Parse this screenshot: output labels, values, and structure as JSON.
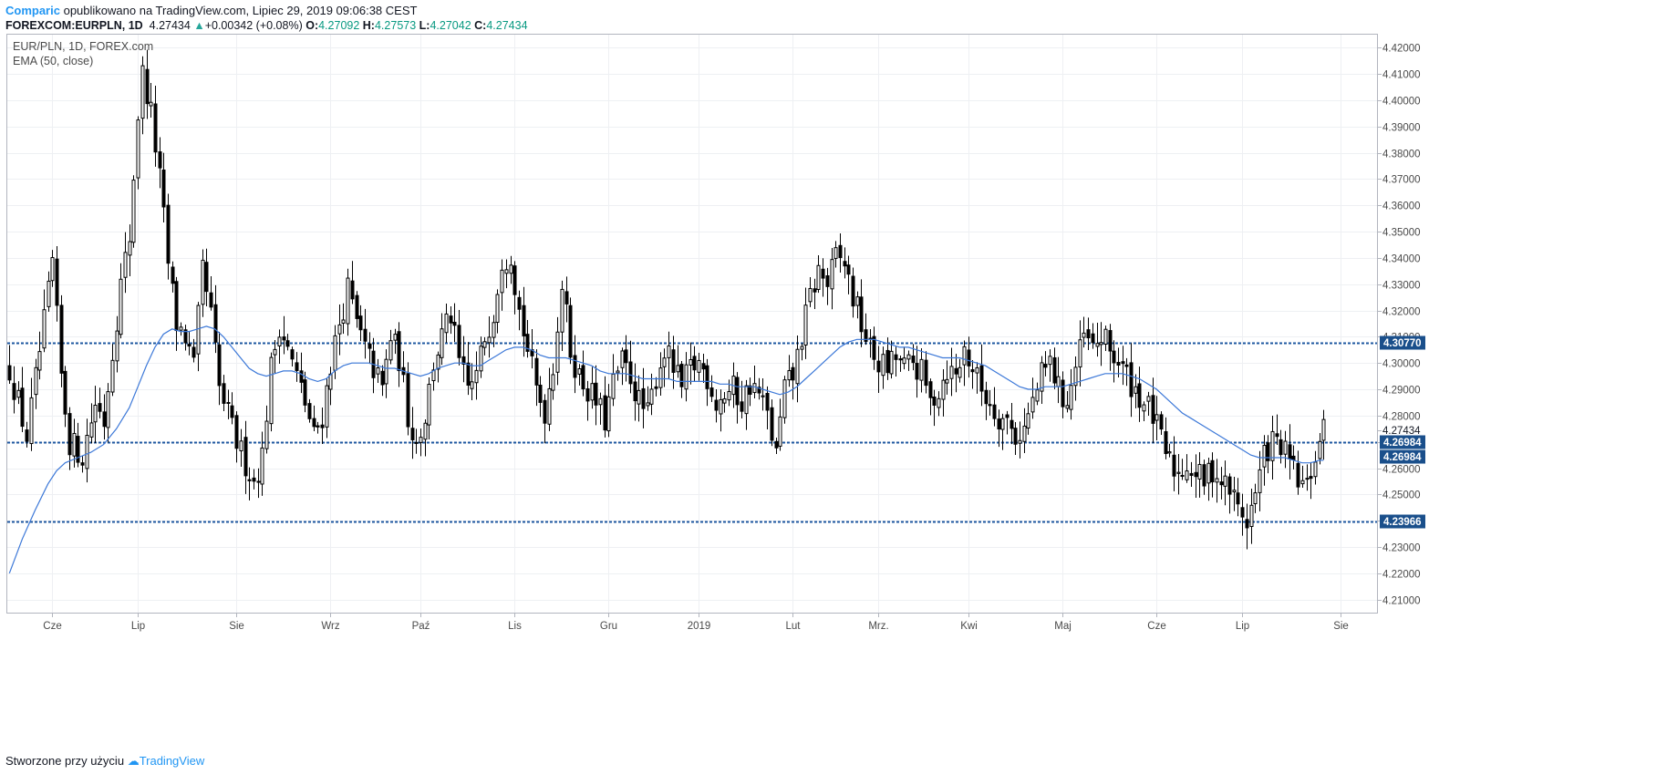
{
  "header": {
    "author": "Comparic",
    "published": "opublikowano na TradingView.com, Lipiec 29, 2019 09:06:38 CEST",
    "symbol": "FOREXCOM:EURPLN, 1D",
    "last": "4.27434",
    "change": "+0.00342 (+0.08%)",
    "o_label": "O:",
    "o_value": "4.27092",
    "h_label": "H:",
    "h_value": "4.27573",
    "l_label": "L:",
    "l_value": "4.27042",
    "c_label": "C:",
    "c_value": "4.27434"
  },
  "legend": {
    "title": "EUR/PLN, 1D, FOREX.com",
    "indicator": "EMA (50, close)"
  },
  "footer": {
    "prefix": "Stworzone przy użyciu",
    "brand": "TradingView"
  },
  "chart_data": {
    "type": "candlestick",
    "symbol": "EUR/PLN",
    "timeframe": "1D",
    "ylim": [
      4.205,
      4.425
    ],
    "yticks": [
      4.21,
      4.22,
      4.23,
      4.24,
      4.25,
      4.26,
      4.27,
      4.28,
      4.29,
      4.3,
      4.31,
      4.32,
      4.33,
      4.34,
      4.35,
      4.36,
      4.37,
      4.38,
      4.39,
      4.4,
      4.41,
      4.42
    ],
    "ytick_decimals": 5,
    "xticks": [
      {
        "label": "Cze",
        "idx": 10
      },
      {
        "label": "Lip",
        "idx": 30
      },
      {
        "label": "Sie",
        "idx": 53
      },
      {
        "label": "Wrz",
        "idx": 75
      },
      {
        "label": "Paź",
        "idx": 96
      },
      {
        "label": "Lis",
        "idx": 118
      },
      {
        "label": "Gru",
        "idx": 140
      },
      {
        "label": "2019",
        "idx": 161
      },
      {
        "label": "Lut",
        "idx": 183
      },
      {
        "label": "Mrz.",
        "idx": 203
      },
      {
        "label": "Kwi",
        "idx": 224
      },
      {
        "label": "Maj",
        "idx": 246
      },
      {
        "label": "Cze",
        "idx": 268
      },
      {
        "label": "Lip",
        "idx": 288
      },
      {
        "label": "Sie",
        "idx": 311
      }
    ],
    "x_slots": 320,
    "horizontal_levels": [
      4.3077,
      4.26984,
      4.23966
    ],
    "price_badges": [
      {
        "text": "4.30770",
        "value": 4.3077,
        "style": "filled"
      },
      {
        "text": "4.27434",
        "value": 4.27434,
        "style": "plain"
      },
      {
        "text": "4.26984",
        "value": 4.26984,
        "style": "filled"
      },
      {
        "text": "4.26984",
        "value": 4.26984,
        "style": "filled",
        "offset_row": 1
      },
      {
        "text": "4.23966",
        "value": 4.23966,
        "style": "filled"
      }
    ],
    "close_path": [
      [
        0,
        4.298
      ],
      [
        4,
        4.272
      ],
      [
        8,
        4.315
      ],
      [
        10,
        4.338
      ],
      [
        12,
        4.295
      ],
      [
        14,
        4.27
      ],
      [
        17,
        4.265
      ],
      [
        20,
        4.285
      ],
      [
        22,
        4.278
      ],
      [
        24,
        4.305
      ],
      [
        26,
        4.33
      ],
      [
        28,
        4.348
      ],
      [
        30,
        4.395
      ],
      [
        31,
        4.41
      ],
      [
        33,
        4.395
      ],
      [
        35,
        4.37
      ],
      [
        36,
        4.355
      ],
      [
        37,
        4.338
      ],
      [
        39,
        4.315
      ],
      [
        41,
        4.31
      ],
      [
        43,
        4.298
      ],
      [
        45,
        4.335
      ],
      [
        47,
        4.318
      ],
      [
        49,
        4.29
      ],
      [
        51,
        4.28
      ],
      [
        53,
        4.27
      ],
      [
        55,
        4.262
      ],
      [
        57,
        4.255
      ],
      [
        59,
        4.265
      ],
      [
        61,
        4.298
      ],
      [
        63,
        4.315
      ],
      [
        65,
        4.305
      ],
      [
        67,
        4.295
      ],
      [
        69,
        4.285
      ],
      [
        71,
        4.272
      ],
      [
        73,
        4.28
      ],
      [
        75,
        4.3
      ],
      [
        77,
        4.315
      ],
      [
        79,
        4.328
      ],
      [
        81,
        4.315
      ],
      [
        83,
        4.305
      ],
      [
        85,
        4.298
      ],
      [
        87,
        4.29
      ],
      [
        89,
        4.31
      ],
      [
        91,
        4.302
      ],
      [
        93,
        4.28
      ],
      [
        95,
        4.27
      ],
      [
        97,
        4.28
      ],
      [
        99,
        4.3
      ],
      [
        101,
        4.31
      ],
      [
        103,
        4.318
      ],
      [
        105,
        4.3
      ],
      [
        107,
        4.29
      ],
      [
        109,
        4.295
      ],
      [
        111,
        4.31
      ],
      [
        113,
        4.32
      ],
      [
        115,
        4.34
      ],
      [
        117,
        4.342
      ],
      [
        119,
        4.32
      ],
      [
        121,
        4.305
      ],
      [
        123,
        4.29
      ],
      [
        125,
        4.282
      ],
      [
        127,
        4.3
      ],
      [
        129,
        4.33
      ],
      [
        131,
        4.305
      ],
      [
        133,
        4.295
      ],
      [
        135,
        4.29
      ],
      [
        137,
        4.285
      ],
      [
        139,
        4.278
      ],
      [
        141,
        4.292
      ],
      [
        143,
        4.3
      ],
      [
        145,
        4.295
      ],
      [
        147,
        4.285
      ],
      [
        149,
        4.28
      ],
      [
        151,
        4.295
      ],
      [
        153,
        4.305
      ],
      [
        155,
        4.298
      ],
      [
        157,
        4.29
      ],
      [
        159,
        4.298
      ],
      [
        161,
        4.3
      ],
      [
        163,
        4.295
      ],
      [
        165,
        4.285
      ],
      [
        167,
        4.288
      ],
      [
        169,
        4.29
      ],
      [
        171,
        4.285
      ],
      [
        173,
        4.292
      ],
      [
        175,
        4.288
      ],
      [
        177,
        4.28
      ],
      [
        179,
        4.265
      ],
      [
        181,
        4.29
      ],
      [
        183,
        4.295
      ],
      [
        185,
        4.31
      ],
      [
        187,
        4.325
      ],
      [
        189,
        4.335
      ],
      [
        191,
        4.33
      ],
      [
        193,
        4.34
      ],
      [
        195,
        4.338
      ],
      [
        197,
        4.325
      ],
      [
        199,
        4.315
      ],
      [
        201,
        4.305
      ],
      [
        203,
        4.3
      ],
      [
        205,
        4.298
      ],
      [
        207,
        4.302
      ],
      [
        209,
        4.298
      ],
      [
        211,
        4.3
      ],
      [
        213,
        4.296
      ],
      [
        215,
        4.285
      ],
      [
        217,
        4.29
      ],
      [
        219,
        4.298
      ],
      [
        221,
        4.295
      ],
      [
        223,
        4.305
      ],
      [
        225,
        4.298
      ],
      [
        227,
        4.29
      ],
      [
        229,
        4.285
      ],
      [
        231,
        4.28
      ],
      [
        233,
        4.278
      ],
      [
        235,
        4.272
      ],
      [
        237,
        4.275
      ],
      [
        239,
        4.285
      ],
      [
        241,
        4.295
      ],
      [
        243,
        4.3
      ],
      [
        245,
        4.29
      ],
      [
        247,
        4.285
      ],
      [
        249,
        4.298
      ],
      [
        251,
        4.31
      ],
      [
        253,
        4.305
      ],
      [
        255,
        4.31
      ],
      [
        257,
        4.305
      ],
      [
        259,
        4.3
      ],
      [
        261,
        4.295
      ],
      [
        263,
        4.29
      ],
      [
        265,
        4.285
      ],
      [
        267,
        4.28
      ],
      [
        269,
        4.27
      ],
      [
        271,
        4.262
      ],
      [
        273,
        4.258
      ],
      [
        275,
        4.262
      ],
      [
        277,
        4.258
      ],
      [
        279,
        4.255
      ],
      [
        281,
        4.26
      ],
      [
        283,
        4.255
      ],
      [
        285,
        4.252
      ],
      [
        287,
        4.245
      ],
      [
        289,
        4.24
      ],
      [
        291,
        4.25
      ],
      [
        293,
        4.265
      ],
      [
        295,
        4.27
      ],
      [
        297,
        4.268
      ],
      [
        299,
        4.262
      ],
      [
        301,
        4.255
      ],
      [
        303,
        4.252
      ],
      [
        305,
        4.265
      ],
      [
        307,
        4.274
      ]
    ],
    "ema_path": [
      [
        0,
        4.22
      ],
      [
        3,
        4.233
      ],
      [
        6,
        4.244
      ],
      [
        9,
        4.254
      ],
      [
        11,
        4.259
      ],
      [
        13,
        4.262
      ],
      [
        16,
        4.264
      ],
      [
        19,
        4.266
      ],
      [
        22,
        4.269
      ],
      [
        25,
        4.275
      ],
      [
        28,
        4.283
      ],
      [
        30,
        4.291
      ],
      [
        32,
        4.299
      ],
      [
        34,
        4.306
      ],
      [
        36,
        4.311
      ],
      [
        38,
        4.313
      ],
      [
        40,
        4.312
      ],
      [
        42,
        4.312
      ],
      [
        44,
        4.313
      ],
      [
        46,
        4.314
      ],
      [
        48,
        4.313
      ],
      [
        50,
        4.31
      ],
      [
        52,
        4.306
      ],
      [
        54,
        4.302
      ],
      [
        56,
        4.298
      ],
      [
        58,
        4.296
      ],
      [
        60,
        4.295
      ],
      [
        62,
        4.296
      ],
      [
        64,
        4.297
      ],
      [
        66,
        4.297
      ],
      [
        68,
        4.296
      ],
      [
        70,
        4.294
      ],
      [
        72,
        4.293
      ],
      [
        74,
        4.294
      ],
      [
        76,
        4.297
      ],
      [
        78,
        4.299
      ],
      [
        80,
        4.3
      ],
      [
        82,
        4.3
      ],
      [
        84,
        4.3
      ],
      [
        86,
        4.299
      ],
      [
        88,
        4.298
      ],
      [
        90,
        4.298
      ],
      [
        92,
        4.297
      ],
      [
        94,
        4.296
      ],
      [
        96,
        4.295
      ],
      [
        98,
        4.296
      ],
      [
        100,
        4.298
      ],
      [
        102,
        4.299
      ],
      [
        104,
        4.3
      ],
      [
        106,
        4.3
      ],
      [
        108,
        4.299
      ],
      [
        110,
        4.299
      ],
      [
        112,
        4.301
      ],
      [
        114,
        4.303
      ],
      [
        116,
        4.305
      ],
      [
        118,
        4.306
      ],
      [
        120,
        4.306
      ],
      [
        122,
        4.305
      ],
      [
        124,
        4.303
      ],
      [
        126,
        4.302
      ],
      [
        128,
        4.302
      ],
      [
        130,
        4.302
      ],
      [
        132,
        4.301
      ],
      [
        134,
        4.3
      ],
      [
        136,
        4.299
      ],
      [
        138,
        4.297
      ],
      [
        140,
        4.296
      ],
      [
        142,
        4.296
      ],
      [
        144,
        4.296
      ],
      [
        146,
        4.295
      ],
      [
        148,
        4.294
      ],
      [
        150,
        4.294
      ],
      [
        152,
        4.294
      ],
      [
        154,
        4.294
      ],
      [
        156,
        4.293
      ],
      [
        158,
        4.293
      ],
      [
        160,
        4.293
      ],
      [
        162,
        4.293
      ],
      [
        164,
        4.293
      ],
      [
        166,
        4.292
      ],
      [
        168,
        4.292
      ],
      [
        170,
        4.291
      ],
      [
        172,
        4.291
      ],
      [
        174,
        4.291
      ],
      [
        176,
        4.29
      ],
      [
        178,
        4.289
      ],
      [
        180,
        4.288
      ],
      [
        182,
        4.289
      ],
      [
        184,
        4.291
      ],
      [
        186,
        4.294
      ],
      [
        188,
        4.297
      ],
      [
        190,
        4.3
      ],
      [
        192,
        4.303
      ],
      [
        194,
        4.306
      ],
      [
        196,
        4.308
      ],
      [
        198,
        4.309
      ],
      [
        200,
        4.309
      ],
      [
        202,
        4.309
      ],
      [
        204,
        4.308
      ],
      [
        206,
        4.307
      ],
      [
        208,
        4.306
      ],
      [
        210,
        4.306
      ],
      [
        212,
        4.305
      ],
      [
        214,
        4.304
      ],
      [
        216,
        4.303
      ],
      [
        218,
        4.302
      ],
      [
        220,
        4.302
      ],
      [
        222,
        4.302
      ],
      [
        224,
        4.301
      ],
      [
        226,
        4.3
      ],
      [
        228,
        4.299
      ],
      [
        230,
        4.297
      ],
      [
        232,
        4.295
      ],
      [
        234,
        4.293
      ],
      [
        236,
        4.291
      ],
      [
        238,
        4.29
      ],
      [
        240,
        4.29
      ],
      [
        242,
        4.291
      ],
      [
        244,
        4.291
      ],
      [
        246,
        4.291
      ],
      [
        248,
        4.292
      ],
      [
        250,
        4.293
      ],
      [
        252,
        4.294
      ],
      [
        254,
        4.295
      ],
      [
        256,
        4.296
      ],
      [
        258,
        4.296
      ],
      [
        260,
        4.296
      ],
      [
        262,
        4.295
      ],
      [
        264,
        4.294
      ],
      [
        266,
        4.292
      ],
      [
        268,
        4.29
      ],
      [
        270,
        4.287
      ],
      [
        272,
        4.284
      ],
      [
        274,
        4.281
      ],
      [
        276,
        4.279
      ],
      [
        278,
        4.277
      ],
      [
        280,
        4.275
      ],
      [
        282,
        4.273
      ],
      [
        284,
        4.271
      ],
      [
        286,
        4.269
      ],
      [
        288,
        4.267
      ],
      [
        290,
        4.265
      ],
      [
        292,
        4.264
      ],
      [
        294,
        4.264
      ],
      [
        296,
        4.264
      ],
      [
        298,
        4.264
      ],
      [
        300,
        4.263
      ],
      [
        302,
        4.262
      ],
      [
        304,
        4.262
      ],
      [
        306,
        4.263
      ],
      [
        307,
        4.263
      ]
    ],
    "colors": {
      "candle": "#000000",
      "ema": "#3c78d8",
      "level": "#1d57a0",
      "badge": "#1a4f8b",
      "grid": "#eef0f3",
      "text": "#4a4a4a"
    },
    "grid": true,
    "title": "EUR/PLN, 1D, FOREX.com"
  }
}
